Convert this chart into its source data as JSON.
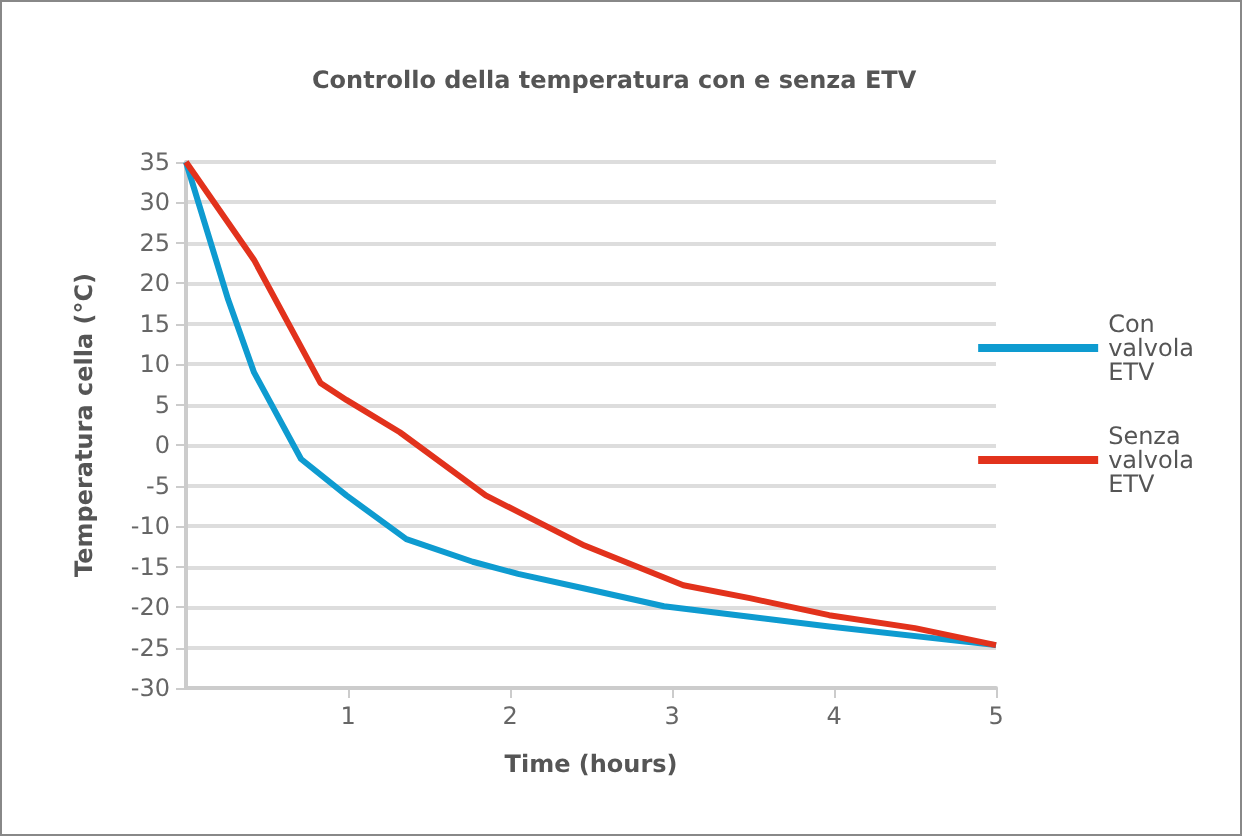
{
  "chart_data": {
    "type": "line",
    "title": "Controllo della temperatura con e senza ETV",
    "xlabel": "Time (hours)",
    "ylabel": "Temperatura cella (°C)",
    "xlim": [
      0,
      5
    ],
    "xticks": [
      1,
      2,
      3,
      4,
      5
    ],
    "ylim": [
      -30,
      35
    ],
    "yticks": [
      -30,
      -25,
      -20,
      -15,
      -10,
      -5,
      0,
      5,
      10,
      15,
      20,
      25,
      30,
      35
    ],
    "grid": "y",
    "legend": "right",
    "marker": "none",
    "line_style": "solid",
    "series": [
      {
        "name": "Con valvola ETV",
        "color": "#0e9bd0",
        "x": [
          0,
          0.26,
          0.42,
          0.71,
          0.99,
          1.36,
          1.77,
          2.05,
          2.46,
          2.95,
          3.48,
          3.97,
          5
        ],
        "values": [
          35,
          18,
          9,
          -1.7,
          -6.2,
          -11.6,
          -14.4,
          -15.9,
          -17.7,
          -19.9,
          -21.2,
          -22.4,
          -24.7
        ]
      },
      {
        "name": "Senza valvola ETV",
        "color": "#e2321c",
        "x": [
          0,
          0.42,
          0.83,
          0.99,
          1.32,
          1.85,
          2.46,
          3.07,
          3.48,
          3.97,
          4.5,
          5
        ],
        "values": [
          35,
          22.9,
          7.7,
          5.6,
          1.6,
          -6.2,
          -12.4,
          -17.3,
          -18.9,
          -21,
          -22.6,
          -24.7
        ]
      }
    ]
  }
}
